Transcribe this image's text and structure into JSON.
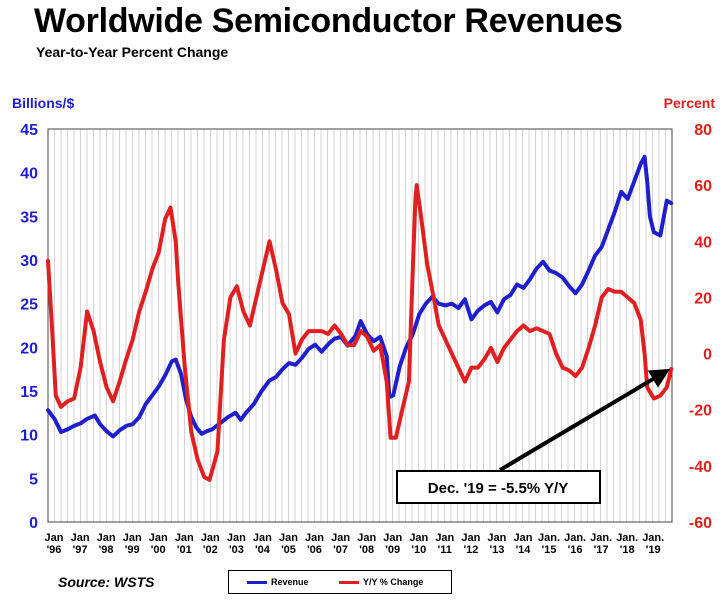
{
  "title": "Worldwide Semiconductor Revenues",
  "subtitle": "Year-to-Year Percent Change",
  "source": "Source: WSTS",
  "colors": {
    "revenue": "#1f1fcc",
    "yoy": "#e02020"
  },
  "chart_data": {
    "type": "line",
    "title": "Worldwide Semiconductor Revenues",
    "subtitle": "Year-to-Year Percent Change",
    "left_axis": {
      "label": "Billions/$",
      "range": [
        0,
        45
      ],
      "ticks": [
        0,
        5,
        10,
        15,
        20,
        25,
        30,
        35,
        40,
        45
      ]
    },
    "right_axis": {
      "label": "Percent",
      "range": [
        -60,
        80
      ],
      "ticks": [
        -60,
        -40,
        -20,
        0,
        20,
        40,
        60,
        80
      ]
    },
    "x_ticks": [
      {
        "month": "Jan",
        "year": "'96"
      },
      {
        "month": "Jan",
        "year": "'97"
      },
      {
        "month": "Jan",
        "year": "'98"
      },
      {
        "month": "Jan",
        "year": "'99"
      },
      {
        "month": "Jan",
        "year": "'00"
      },
      {
        "month": "Jan",
        "year": "'01"
      },
      {
        "month": "Jan",
        "year": "'02"
      },
      {
        "month": "Jan",
        "year": "'03"
      },
      {
        "month": "Jan",
        "year": "'04"
      },
      {
        "month": "Jan",
        "year": "'05"
      },
      {
        "month": "Jan",
        "year": "'06"
      },
      {
        "month": "Jan",
        "year": "'07"
      },
      {
        "month": "Jan",
        "year": "'08"
      },
      {
        "month": "Jan",
        "year": "'09"
      },
      {
        "month": "Jan",
        "year": "'10"
      },
      {
        "month": "Jan",
        "year": "'11"
      },
      {
        "month": "Jan",
        "year": "'12"
      },
      {
        "month": "Jan",
        "year": "'13"
      },
      {
        "month": "Jan",
        "year": "'14"
      },
      {
        "month": "Jan.",
        "year": "'15"
      },
      {
        "month": "Jan.",
        "year": "'16"
      },
      {
        "month": "Jan.",
        "year": "'17"
      },
      {
        "month": "Jan.",
        "year": "'18"
      },
      {
        "month": "Jan.",
        "year": "'19"
      }
    ],
    "series": [
      {
        "name": "Revenue",
        "axis": "left",
        "points": [
          [
            1996.0,
            12.8
          ],
          [
            1996.25,
            11.8
          ],
          [
            1996.5,
            10.3
          ],
          [
            1996.75,
            10.6
          ],
          [
            1997.0,
            11.0
          ],
          [
            1997.25,
            11.3
          ],
          [
            1997.5,
            11.8
          ],
          [
            1997.8,
            12.2
          ],
          [
            1998.0,
            11.2
          ],
          [
            1998.25,
            10.4
          ],
          [
            1998.5,
            9.8
          ],
          [
            1998.75,
            10.5
          ],
          [
            1999.0,
            11.0
          ],
          [
            1999.25,
            11.2
          ],
          [
            1999.5,
            12.0
          ],
          [
            1999.75,
            13.5
          ],
          [
            2000.0,
            14.5
          ],
          [
            2000.25,
            15.5
          ],
          [
            2000.5,
            16.8
          ],
          [
            2000.75,
            18.4
          ],
          [
            2000.9,
            18.6
          ],
          [
            2001.1,
            17.0
          ],
          [
            2001.3,
            14.0
          ],
          [
            2001.5,
            12.0
          ],
          [
            2001.7,
            10.8
          ],
          [
            2001.9,
            10.1
          ],
          [
            2002.1,
            10.4
          ],
          [
            2002.3,
            10.6
          ],
          [
            2002.6,
            11.3
          ],
          [
            2002.9,
            12.0
          ],
          [
            2003.2,
            12.5
          ],
          [
            2003.4,
            11.7
          ],
          [
            2003.6,
            12.5
          ],
          [
            2003.9,
            13.5
          ],
          [
            2004.2,
            15.0
          ],
          [
            2004.5,
            16.2
          ],
          [
            2004.75,
            16.6
          ],
          [
            2005.0,
            17.5
          ],
          [
            2005.25,
            18.2
          ],
          [
            2005.5,
            18.0
          ],
          [
            2005.75,
            18.8
          ],
          [
            2006.0,
            19.8
          ],
          [
            2006.25,
            20.3
          ],
          [
            2006.5,
            19.5
          ],
          [
            2006.8,
            20.5
          ],
          [
            2007.0,
            21.0
          ],
          [
            2007.25,
            21.2
          ],
          [
            2007.5,
            20.2
          ],
          [
            2007.8,
            21.3
          ],
          [
            2008.0,
            23.0
          ],
          [
            2008.25,
            21.5
          ],
          [
            2008.5,
            20.7
          ],
          [
            2008.75,
            21.2
          ],
          [
            2009.0,
            19.0
          ],
          [
            2009.1,
            14.3
          ],
          [
            2009.25,
            14.5
          ],
          [
            2009.5,
            17.8
          ],
          [
            2009.75,
            20.0
          ],
          [
            2010.0,
            21.5
          ],
          [
            2010.25,
            23.8
          ],
          [
            2010.5,
            25.0
          ],
          [
            2010.75,
            25.8
          ],
          [
            2011.0,
            25.0
          ],
          [
            2011.25,
            24.8
          ],
          [
            2011.5,
            25.0
          ],
          [
            2011.75,
            24.5
          ],
          [
            2012.0,
            25.5
          ],
          [
            2012.25,
            23.2
          ],
          [
            2012.5,
            24.2
          ],
          [
            2012.75,
            24.8
          ],
          [
            2013.0,
            25.2
          ],
          [
            2013.25,
            24.0
          ],
          [
            2013.5,
            25.5
          ],
          [
            2013.75,
            26.0
          ],
          [
            2014.0,
            27.2
          ],
          [
            2014.25,
            26.8
          ],
          [
            2014.5,
            27.8
          ],
          [
            2014.75,
            29.0
          ],
          [
            2015.0,
            29.8
          ],
          [
            2015.25,
            28.8
          ],
          [
            2015.5,
            28.5
          ],
          [
            2015.75,
            28.0
          ],
          [
            2016.0,
            27.0
          ],
          [
            2016.25,
            26.2
          ],
          [
            2016.5,
            27.2
          ],
          [
            2016.75,
            28.8
          ],
          [
            2017.0,
            30.5
          ],
          [
            2017.25,
            31.5
          ],
          [
            2017.5,
            33.5
          ],
          [
            2017.75,
            35.5
          ],
          [
            2018.0,
            37.8
          ],
          [
            2018.25,
            37.0
          ],
          [
            2018.5,
            39.0
          ],
          [
            2018.75,
            41.0
          ],
          [
            2018.9,
            41.8
          ],
          [
            2019.0,
            39.0
          ],
          [
            2019.1,
            35.0
          ],
          [
            2019.25,
            33.2
          ],
          [
            2019.5,
            32.8
          ],
          [
            2019.75,
            36.8
          ],
          [
            2019.92,
            36.5
          ]
        ]
      },
      {
        "name": "Y/Y % Change",
        "axis": "right",
        "points": [
          [
            1996.0,
            33.0
          ],
          [
            1996.15,
            10.0
          ],
          [
            1996.3,
            -15.0
          ],
          [
            1996.5,
            -19.0
          ],
          [
            1996.75,
            -17.0
          ],
          [
            1997.0,
            -16.0
          ],
          [
            1997.25,
            -5.0
          ],
          [
            1997.5,
            15.0
          ],
          [
            1997.75,
            8.0
          ],
          [
            1998.0,
            -3.0
          ],
          [
            1998.25,
            -12.0
          ],
          [
            1998.5,
            -17.0
          ],
          [
            1998.75,
            -10.0
          ],
          [
            1999.0,
            -2.0
          ],
          [
            1999.25,
            5.0
          ],
          [
            1999.5,
            15.0
          ],
          [
            1999.75,
            22.0
          ],
          [
            2000.0,
            30.0
          ],
          [
            2000.25,
            36.0
          ],
          [
            2000.5,
            48.0
          ],
          [
            2000.7,
            52.0
          ],
          [
            2000.9,
            40.0
          ],
          [
            2001.0,
            25.0
          ],
          [
            2001.25,
            -5.0
          ],
          [
            2001.5,
            -28.0
          ],
          [
            2001.75,
            -38.0
          ],
          [
            2002.0,
            -44.0
          ],
          [
            2002.2,
            -45.0
          ],
          [
            2002.5,
            -35.0
          ],
          [
            2002.75,
            5.0
          ],
          [
            2003.0,
            20.0
          ],
          [
            2003.25,
            24.0
          ],
          [
            2003.5,
            15.0
          ],
          [
            2003.75,
            10.0
          ],
          [
            2004.0,
            20.0
          ],
          [
            2004.25,
            30.0
          ],
          [
            2004.5,
            40.0
          ],
          [
            2004.75,
            30.0
          ],
          [
            2005.0,
            18.0
          ],
          [
            2005.25,
            14.0
          ],
          [
            2005.5,
            0.0
          ],
          [
            2005.75,
            5.0
          ],
          [
            2006.0,
            8.0
          ],
          [
            2006.25,
            8.0
          ],
          [
            2006.5,
            8.0
          ],
          [
            2006.75,
            7.0
          ],
          [
            2007.0,
            10.0
          ],
          [
            2007.25,
            7.0
          ],
          [
            2007.5,
            3.0
          ],
          [
            2007.75,
            3.0
          ],
          [
            2008.0,
            8.0
          ],
          [
            2008.25,
            6.0
          ],
          [
            2008.5,
            1.0
          ],
          [
            2008.75,
            3.0
          ],
          [
            2009.0,
            -10.0
          ],
          [
            2009.15,
            -30.0
          ],
          [
            2009.35,
            -30.0
          ],
          [
            2009.6,
            -20.0
          ],
          [
            2009.85,
            -10.0
          ],
          [
            2010.0,
            30.0
          ],
          [
            2010.1,
            55.0
          ],
          [
            2010.15,
            60.0
          ],
          [
            2010.3,
            50.0
          ],
          [
            2010.55,
            32.0
          ],
          [
            2010.8,
            20.0
          ],
          [
            2011.0,
            10.0
          ],
          [
            2011.25,
            5.0
          ],
          [
            2011.5,
            0.0
          ],
          [
            2011.75,
            -5.0
          ],
          [
            2012.0,
            -10.0
          ],
          [
            2012.25,
            -5.0
          ],
          [
            2012.5,
            -5.0
          ],
          [
            2012.75,
            -2.0
          ],
          [
            2013.0,
            2.0
          ],
          [
            2013.25,
            -3.0
          ],
          [
            2013.5,
            2.0
          ],
          [
            2013.75,
            5.0
          ],
          [
            2014.0,
            8.0
          ],
          [
            2014.25,
            10.0
          ],
          [
            2014.5,
            8.0
          ],
          [
            2014.75,
            9.0
          ],
          [
            2015.0,
            8.0
          ],
          [
            2015.25,
            7.0
          ],
          [
            2015.5,
            0.0
          ],
          [
            2015.75,
            -5.0
          ],
          [
            2016.0,
            -6.0
          ],
          [
            2016.25,
            -8.0
          ],
          [
            2016.5,
            -5.0
          ],
          [
            2016.75,
            2.0
          ],
          [
            2017.0,
            10.0
          ],
          [
            2017.25,
            20.0
          ],
          [
            2017.5,
            23.0
          ],
          [
            2017.75,
            22.0
          ],
          [
            2018.0,
            22.0
          ],
          [
            2018.25,
            20.0
          ],
          [
            2018.5,
            18.0
          ],
          [
            2018.75,
            12.0
          ],
          [
            2018.9,
            0.0
          ],
          [
            2019.0,
            -12.0
          ],
          [
            2019.25,
            -16.0
          ],
          [
            2019.5,
            -15.0
          ],
          [
            2019.75,
            -12.0
          ],
          [
            2019.92,
            -5.5
          ]
        ]
      }
    ],
    "annotation": {
      "text": "Dec. '19 = -5.5% Y/Y",
      "target": [
        2019.92,
        -5.5
      ],
      "axis": "right"
    },
    "legend": [
      "Revenue",
      "Y/Y % Change"
    ],
    "grid": true
  }
}
